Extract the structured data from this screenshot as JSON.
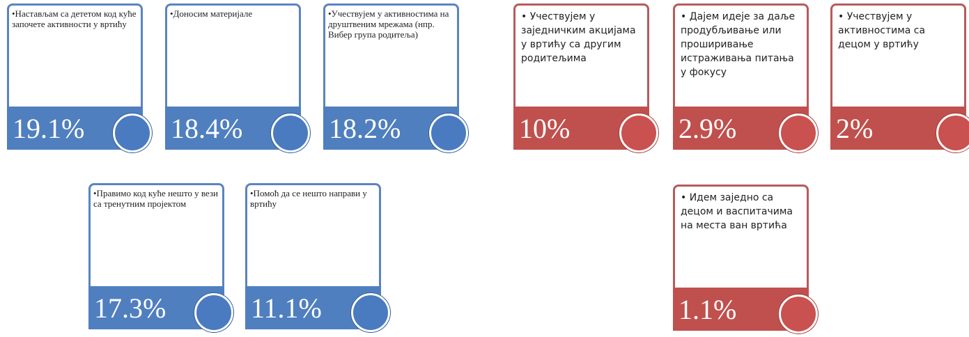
{
  "groups": [
    {
      "cards": [
        {
          "text": "•Настављам са дететом код куће започете активности у вртићу",
          "value": "19.1%"
        },
        {
          "text": "•Доносим материјале",
          "value": "18.4%"
        },
        {
          "text": "•Учествујем у активностима на друштвеним мрежама (нпр. Вибер група родитеља)",
          "value": "18.2%"
        },
        {
          "text": "•Правимо код куће нешто у вези са тренутним пројектом",
          "value": "17.3%"
        },
        {
          "text": "•Помоћ да се нешто направи у вртићу",
          "value": "11.1%"
        }
      ]
    },
    {
      "cards": [
        {
          "text": "• Учествујем у заједничким акцијама у вртићу са другим родитељима",
          "value": "10%"
        },
        {
          "text": "• Дајем идеје за даље продубљивање или проширивање истраживања питања у фокусу",
          "value": "2.9%"
        },
        {
          "text": "• Учествујем у активностима са децом у вртићу",
          "value": "2%"
        },
        {
          "text": "• Идем заједно са децом и васпитачима на места ван вртића",
          "value": "1.1%"
        }
      ]
    }
  ]
}
